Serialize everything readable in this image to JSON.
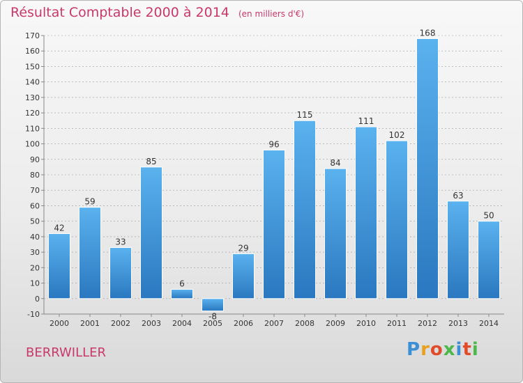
{
  "header": {
    "title": "Résultat Comptable 2000 à 2014",
    "subtitle": "(en milliers d'€)"
  },
  "footer": {
    "commune": "BERRWILLER",
    "brand_letters": [
      "P",
      "r",
      "o",
      "x",
      "i",
      "t",
      "i"
    ],
    "brand_colors": [
      "#3a8fd6",
      "#e8a020",
      "#e04b2a",
      "#4bb84b",
      "#3a8fd6",
      "#e04b2a",
      "#4bb84b"
    ]
  },
  "colors": {
    "title": "#c8386b",
    "bar_top": "#5ab2ee",
    "bar_bottom": "#2a78c0",
    "grid": "#999999"
  },
  "chart_data": {
    "type": "bar",
    "title": "Résultat Comptable 2000 à 2014",
    "subtitle": "(en milliers d'€)",
    "xlabel": "",
    "ylabel": "",
    "categories": [
      "2000",
      "2001",
      "2002",
      "2003",
      "2004",
      "2005",
      "2006",
      "2007",
      "2008",
      "2009",
      "2010",
      "2011",
      "2012",
      "2013",
      "2014"
    ],
    "values": [
      42,
      59,
      33,
      85,
      6,
      -8,
      29,
      96,
      115,
      84,
      111,
      102,
      168,
      63,
      50
    ],
    "value_labels": [
      "42",
      "59",
      "33",
      "85",
      "6",
      "-8",
      "29",
      "96",
      "115",
      "84",
      "111",
      "102",
      "168",
      "63",
      "50"
    ],
    "ylim": [
      -10,
      170
    ],
    "yticks": [
      -10,
      0,
      10,
      20,
      30,
      40,
      50,
      60,
      70,
      80,
      90,
      100,
      110,
      120,
      130,
      140,
      150,
      160,
      170
    ],
    "grid": true
  }
}
